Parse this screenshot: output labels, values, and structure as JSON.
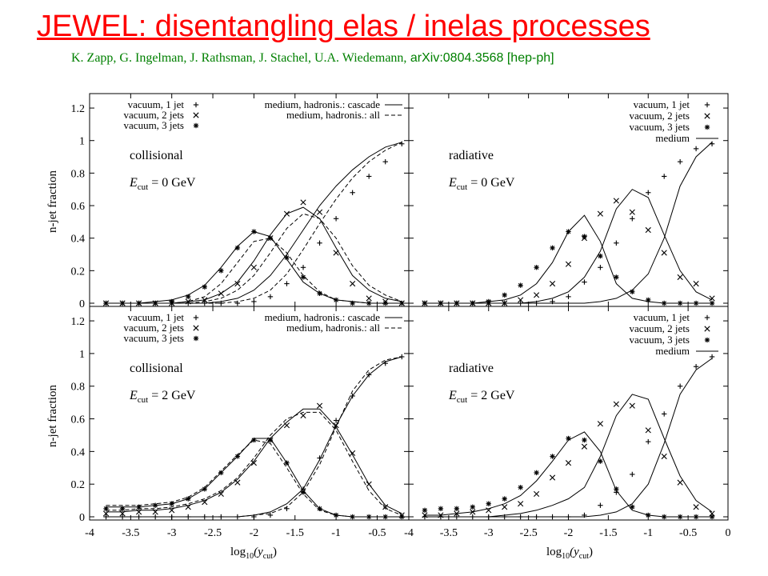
{
  "slide": {
    "title": "JEWEL: disentangling elas / inelas processes",
    "authors": "K. Zapp, G. Ingelman, J. Rathsman, J. Stachel, U.A. Wiedemann,",
    "arxiv": "arXiv:0804.3568 [hep-ph]"
  },
  "colors": {
    "title": "#ff0000",
    "authors": "#008000",
    "plot": "#000000"
  },
  "axes": {
    "ylabel": "n-jet fraction",
    "xlabel_main": "log",
    "xlabel_sub": "10",
    "xlabel_arg": "(y",
    "xlabel_argsub": "cut",
    "xlabel_close": ")",
    "yticks": [
      "0",
      "0.2",
      "0.4",
      "0.6",
      "0.8",
      "1",
      "1.2"
    ],
    "xticks_left": [
      "-4",
      "-3.5",
      "-3",
      "-2.5",
      "-2",
      "-1.5",
      "-1",
      "-0.5"
    ],
    "xticks_right": [
      "-4",
      "-3.5",
      "-3",
      "-2.5",
      "-2",
      "-1.5",
      "-1",
      "-0.5",
      "0"
    ]
  },
  "legends": {
    "coll": [
      {
        "label": "vacuum, 1 jet",
        "marker": "plus"
      },
      {
        "label": "vacuum, 2 jets",
        "marker": "cross"
      },
      {
        "label": "vacuum, 3 jets",
        "marker": "star"
      }
    ],
    "coll_lines": [
      {
        "label": "medium, hadronis.: cascade",
        "style": "solid"
      },
      {
        "label": "medium, hadronis.: all",
        "style": "dashed"
      }
    ],
    "rad": [
      {
        "label": "vacuum, 1 jet",
        "marker": "plus"
      },
      {
        "label": "vacuum, 2 jets",
        "marker": "cross"
      },
      {
        "label": "vacuum, 3 jets",
        "marker": "star"
      },
      {
        "label": "medium",
        "marker": "line"
      }
    ]
  },
  "chart_data": [
    {
      "type": "line",
      "panel": "top-left",
      "label": "collisional",
      "ecut": "0 GeV",
      "xlim": [
        -4,
        -0.15
      ],
      "ylim": [
        0,
        1.3
      ],
      "grid": false,
      "legend": "top",
      "x": [
        -3.8,
        -3.6,
        -3.4,
        -3.2,
        -3.0,
        -2.8,
        -2.6,
        -2.4,
        -2.2,
        -2.0,
        -1.8,
        -1.6,
        -1.4,
        -1.2,
        -1.0,
        -0.8,
        -0.6,
        -0.4,
        -0.2
      ],
      "series": [
        {
          "name": "vacuum, 1 jet",
          "marker": "plus",
          "values": [
            0,
            0,
            0,
            0,
            0,
            0,
            0,
            0,
            0,
            0.01,
            0.04,
            0.12,
            0.22,
            0.37,
            0.52,
            0.68,
            0.78,
            0.87,
            0.98
          ]
        },
        {
          "name": "vacuum, 2 jets",
          "marker": "cross",
          "values": [
            0,
            0,
            0,
            0,
            0,
            0.01,
            0.02,
            0.06,
            0.12,
            0.22,
            0.4,
            0.55,
            0.62,
            0.56,
            0.31,
            0.12,
            0.03,
            0.01,
            0
          ]
        },
        {
          "name": "vacuum, 3 jets",
          "marker": "star",
          "values": [
            0,
            0,
            0,
            0,
            0.01,
            0.04,
            0.1,
            0.2,
            0.34,
            0.44,
            0.4,
            0.28,
            0.16,
            0.06,
            0.02,
            0,
            0,
            0,
            0
          ]
        },
        {
          "name": "medium, hadronis.: cascade",
          "style": "solid",
          "group": 1,
          "values": [
            0,
            0,
            0,
            0,
            0,
            0,
            0,
            0.01,
            0.03,
            0.08,
            0.17,
            0.3,
            0.45,
            0.6,
            0.72,
            0.82,
            0.9,
            0.96,
            0.99
          ]
        },
        {
          "name": "medium, hadronis.: cascade",
          "style": "solid",
          "group": 2,
          "values": [
            0,
            0,
            0,
            0,
            0,
            0.01,
            0.02,
            0.06,
            0.13,
            0.26,
            0.42,
            0.55,
            0.59,
            0.52,
            0.34,
            0.17,
            0.08,
            0.03,
            0.01
          ]
        },
        {
          "name": "medium, hadronis.: cascade",
          "style": "solid",
          "group": 3,
          "values": [
            0,
            0,
            0,
            0.01,
            0.02,
            0.05,
            0.11,
            0.22,
            0.35,
            0.44,
            0.41,
            0.27,
            0.13,
            0.06,
            0.02,
            0.01,
            0,
            0,
            0
          ]
        },
        {
          "name": "medium, hadronis.: all",
          "style": "dashed",
          "group": 1,
          "values": [
            0,
            0,
            0,
            0,
            0,
            0,
            0,
            0,
            0.01,
            0.03,
            0.08,
            0.18,
            0.33,
            0.49,
            0.64,
            0.77,
            0.87,
            0.94,
            0.99
          ]
        },
        {
          "name": "medium, hadronis.: all",
          "style": "dashed",
          "group": 2,
          "values": [
            0,
            0,
            0,
            0,
            0,
            0,
            0.01,
            0.03,
            0.08,
            0.17,
            0.31,
            0.46,
            0.55,
            0.52,
            0.4,
            0.23,
            0.11,
            0.05,
            0.01
          ]
        },
        {
          "name": "medium, hadronis.: all",
          "style": "dashed",
          "group": 3,
          "values": [
            0,
            0,
            0,
            0,
            0,
            0.01,
            0.04,
            0.12,
            0.25,
            0.38,
            0.4,
            0.31,
            0.17,
            0.07,
            0.02,
            0.01,
            0,
            0,
            0
          ]
        }
      ]
    },
    {
      "type": "line",
      "panel": "top-right",
      "label": "radiative",
      "ecut": "0 GeV",
      "xlim": [
        -4,
        0
      ],
      "ylim": [
        0,
        1.3
      ],
      "grid": false,
      "legend": "top-right",
      "x": [
        -3.8,
        -3.6,
        -3.4,
        -3.2,
        -3.0,
        -2.8,
        -2.6,
        -2.4,
        -2.2,
        -2.0,
        -1.8,
        -1.6,
        -1.4,
        -1.2,
        -1.0,
        -0.8,
        -0.6,
        -0.4,
        -0.2
      ],
      "series": [
        {
          "name": "vacuum, 1 jet",
          "marker": "plus",
          "values": [
            0,
            0,
            0,
            0,
            0,
            0,
            0,
            0,
            0.01,
            0.04,
            0.13,
            0.22,
            0.37,
            0.52,
            0.68,
            0.78,
            0.87,
            0.95,
            0.98
          ]
        },
        {
          "name": "vacuum, 2 jets",
          "marker": "cross",
          "values": [
            0,
            0,
            0,
            0,
            0,
            0,
            0.02,
            0.05,
            0.12,
            0.24,
            0.4,
            0.55,
            0.63,
            0.56,
            0.45,
            0.31,
            0.16,
            0.12,
            0.03
          ]
        },
        {
          "name": "vacuum, 3 jets",
          "marker": "star",
          "values": [
            0,
            0,
            0,
            0,
            0.01,
            0.05,
            0.11,
            0.22,
            0.34,
            0.44,
            0.41,
            0.29,
            0.16,
            0.07,
            0.02,
            0,
            0,
            0,
            0
          ]
        },
        {
          "name": "medium",
          "style": "solid",
          "group": 1,
          "values": [
            0,
            0,
            0,
            0,
            0,
            0,
            0,
            0,
            0,
            0,
            0,
            0.01,
            0.03,
            0.08,
            0.18,
            0.4,
            0.72,
            0.9,
            0.99
          ]
        },
        {
          "name": "medium",
          "style": "solid",
          "group": 2,
          "values": [
            0,
            0,
            0,
            0,
            0,
            0,
            0,
            0.01,
            0.03,
            0.07,
            0.16,
            0.32,
            0.58,
            0.7,
            0.65,
            0.42,
            0.2,
            0.07,
            0.02
          ]
        },
        {
          "name": "medium",
          "style": "solid",
          "group": 3,
          "values": [
            0,
            0,
            0,
            0,
            0.01,
            0.02,
            0.05,
            0.12,
            0.25,
            0.44,
            0.54,
            0.38,
            0.12,
            0.03,
            0.01,
            0,
            0,
            0,
            0
          ]
        }
      ]
    },
    {
      "type": "line",
      "panel": "bottom-left",
      "label": "collisional",
      "ecut": "2 GeV",
      "xlim": [
        -4,
        -0.15
      ],
      "ylim": [
        0,
        1.3
      ],
      "grid": false,
      "legend": "top",
      "x": [
        -3.8,
        -3.6,
        -3.4,
        -3.2,
        -3.0,
        -2.8,
        -2.6,
        -2.4,
        -2.2,
        -2.0,
        -1.8,
        -1.6,
        -1.4,
        -1.2,
        -1.0,
        -0.8,
        -0.6,
        -0.4,
        -0.2
      ],
      "series": [
        {
          "name": "vacuum, 1 jet",
          "marker": "plus",
          "values": [
            0,
            0,
            0,
            0,
            0,
            0,
            0,
            0,
            0,
            0,
            0.01,
            0.05,
            0.17,
            0.36,
            0.59,
            0.74,
            0.87,
            0.94,
            0.98
          ]
        },
        {
          "name": "vacuum, 2 jets",
          "marker": "cross",
          "values": [
            0.02,
            0.02,
            0.03,
            0.03,
            0.04,
            0.06,
            0.09,
            0.14,
            0.21,
            0.33,
            0.47,
            0.56,
            0.62,
            0.68,
            0.56,
            0.39,
            0.2,
            0.06,
            0.01
          ]
        },
        {
          "name": "vacuum, 3 jets",
          "marker": "star",
          "values": [
            0.05,
            0.05,
            0.06,
            0.07,
            0.08,
            0.11,
            0.17,
            0.27,
            0.37,
            0.47,
            0.47,
            0.33,
            0.15,
            0.05,
            0.01,
            0,
            0,
            0,
            0
          ]
        },
        {
          "name": "medium, hadronis.: cascade",
          "style": "solid",
          "group": 1,
          "values": [
            0,
            0,
            0,
            0,
            0,
            0,
            0,
            0,
            0,
            0.01,
            0.03,
            0.08,
            0.17,
            0.35,
            0.56,
            0.74,
            0.87,
            0.95,
            0.98
          ]
        },
        {
          "name": "medium, hadronis.: cascade",
          "style": "solid",
          "group": 2,
          "values": [
            0.03,
            0.03,
            0.04,
            0.04,
            0.05,
            0.07,
            0.1,
            0.15,
            0.23,
            0.34,
            0.48,
            0.58,
            0.66,
            0.66,
            0.55,
            0.38,
            0.2,
            0.07,
            0.02
          ]
        },
        {
          "name": "medium, hadronis.: cascade",
          "style": "solid",
          "group": 3,
          "values": [
            0.06,
            0.06,
            0.06,
            0.07,
            0.08,
            0.11,
            0.17,
            0.27,
            0.37,
            0.48,
            0.48,
            0.33,
            0.16,
            0.05,
            0.01,
            0,
            0,
            0,
            0
          ]
        },
        {
          "name": "medium, hadronis.: all",
          "style": "dashed",
          "group": 1,
          "values": [
            0,
            0,
            0,
            0,
            0,
            0,
            0,
            0,
            0,
            0.01,
            0.02,
            0.06,
            0.15,
            0.32,
            0.55,
            0.77,
            0.9,
            0.96,
            0.98
          ]
        },
        {
          "name": "medium, hadronis.: all",
          "style": "dashed",
          "group": 2,
          "values": [
            0.04,
            0.04,
            0.05,
            0.05,
            0.06,
            0.08,
            0.11,
            0.16,
            0.24,
            0.36,
            0.5,
            0.6,
            0.64,
            0.64,
            0.53,
            0.34,
            0.16,
            0.05,
            0.01
          ]
        },
        {
          "name": "medium, hadronis.: all",
          "style": "dashed",
          "group": 3,
          "values": [
            0.07,
            0.07,
            0.07,
            0.08,
            0.09,
            0.12,
            0.18,
            0.28,
            0.38,
            0.47,
            0.45,
            0.3,
            0.14,
            0.04,
            0.01,
            0,
            0,
            0,
            0
          ]
        }
      ]
    },
    {
      "type": "line",
      "panel": "bottom-right",
      "label": "radiative",
      "ecut": "2 GeV",
      "xlim": [
        -4,
        0
      ],
      "ylim": [
        0,
        1.3
      ],
      "grid": false,
      "legend": "top-right",
      "x": [
        -3.8,
        -3.6,
        -3.4,
        -3.2,
        -3.0,
        -2.8,
        -2.6,
        -2.4,
        -2.2,
        -2.0,
        -1.8,
        -1.6,
        -1.4,
        -1.2,
        -1.0,
        -0.8,
        -0.6,
        -0.4,
        -0.2
      ],
      "series": [
        {
          "name": "vacuum, 1 jet",
          "marker": "plus",
          "values": [
            0,
            0,
            0,
            0,
            0,
            0,
            0,
            0,
            0,
            0,
            0.01,
            0.07,
            0.15,
            0.26,
            0.46,
            0.63,
            0.8,
            0.92,
            0.98
          ]
        },
        {
          "name": "vacuum, 2 jets",
          "marker": "cross",
          "values": [
            0.01,
            0.01,
            0.02,
            0.03,
            0.04,
            0.06,
            0.08,
            0.14,
            0.24,
            0.33,
            0.43,
            0.57,
            0.69,
            0.68,
            0.53,
            0.37,
            0.21,
            0.06,
            0.02
          ]
        },
        {
          "name": "vacuum, 3 jets",
          "marker": "star",
          "values": [
            0.04,
            0.05,
            0.05,
            0.06,
            0.08,
            0.11,
            0.18,
            0.27,
            0.37,
            0.48,
            0.47,
            0.34,
            0.17,
            0.06,
            0.01,
            0,
            0,
            0,
            0
          ]
        },
        {
          "name": "medium",
          "style": "solid",
          "group": 1,
          "values": [
            0,
            0,
            0,
            0,
            0,
            0,
            0,
            0,
            0,
            0,
            0,
            0.01,
            0.03,
            0.08,
            0.2,
            0.45,
            0.75,
            0.9,
            0.97
          ]
        },
        {
          "name": "medium",
          "style": "solid",
          "group": 2,
          "values": [
            0,
            0,
            0,
            0,
            0,
            0.01,
            0.02,
            0.04,
            0.07,
            0.11,
            0.18,
            0.37,
            0.62,
            0.75,
            0.72,
            0.48,
            0.25,
            0.1,
            0.03
          ]
        },
        {
          "name": "medium",
          "style": "solid",
          "group": 3,
          "values": [
            0.01,
            0.01,
            0.02,
            0.03,
            0.05,
            0.08,
            0.13,
            0.22,
            0.34,
            0.47,
            0.52,
            0.4,
            0.16,
            0.04,
            0.01,
            0,
            0,
            0,
            0
          ]
        }
      ]
    }
  ]
}
